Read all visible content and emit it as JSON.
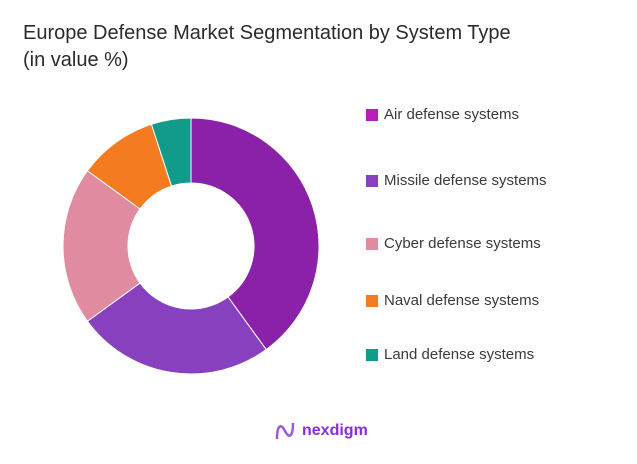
{
  "chart_data": {
    "type": "pie",
    "title": "Europe Defense Market Segmentation by System Type",
    "subtitle": "(in value %)",
    "categories": [
      "Air defense systems",
      "Missile defense systems",
      "Cyber defense systems",
      "Naval defense systems",
      "Land defense systems"
    ],
    "values": [
      40,
      25,
      20,
      10,
      5
    ],
    "slice_colors": [
      "#8B21A9",
      "#8740BE",
      "#E08BA0",
      "#F47B20",
      "#109B8A"
    ],
    "legend_colors": [
      "#B81DB8",
      "#8740BE",
      "#E08BA0",
      "#F47B20",
      "#109B8A"
    ],
    "legend_position": "right",
    "donut": true
  },
  "brand": {
    "name": "nexdigm",
    "color": "#8A2BE2"
  }
}
